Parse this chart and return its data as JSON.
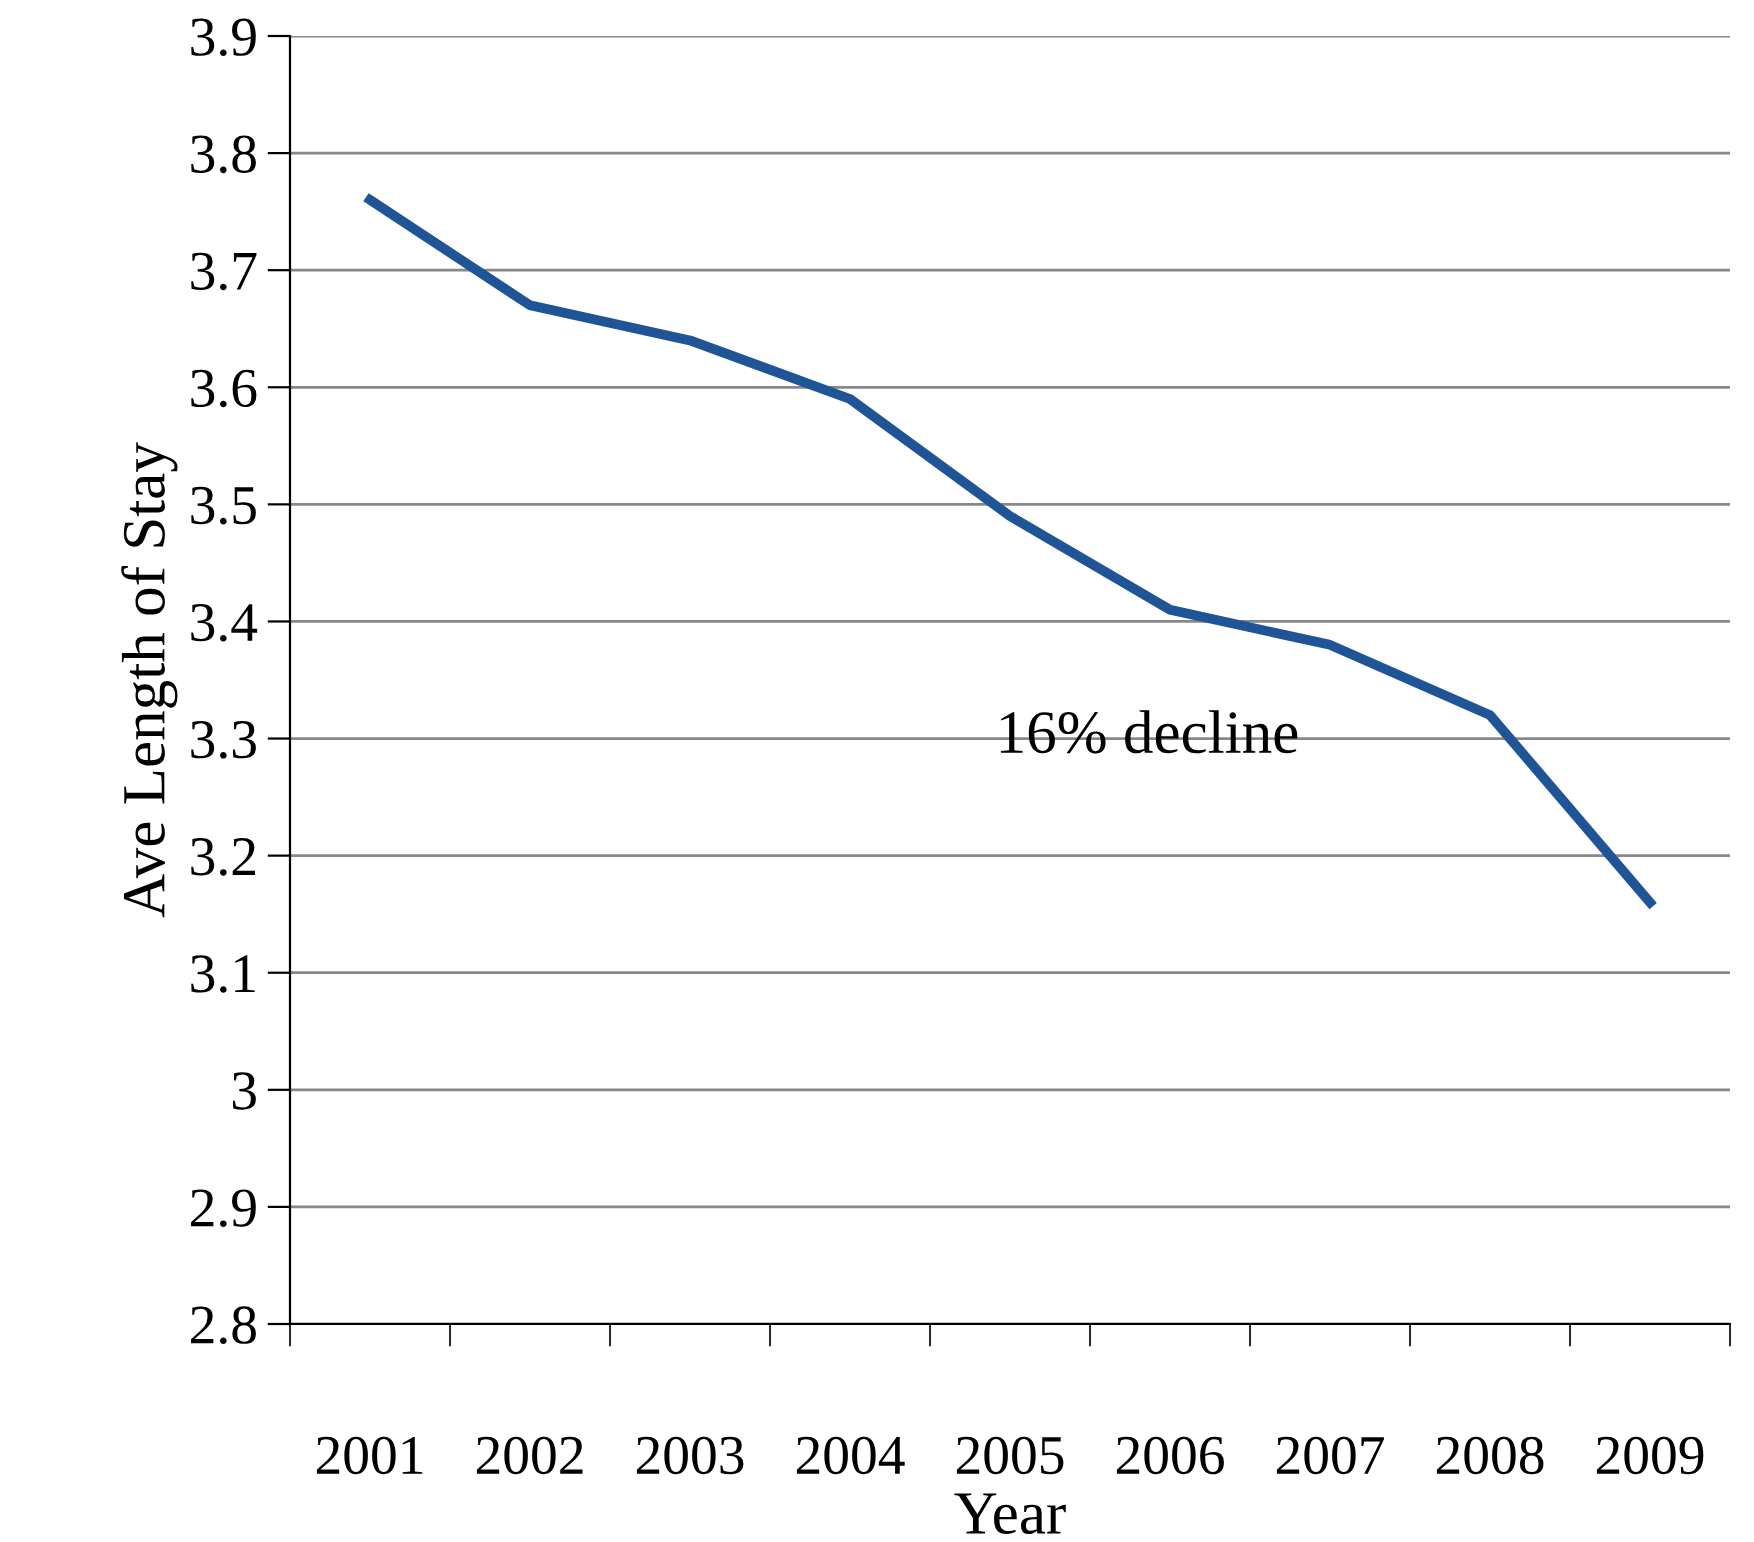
{
  "chart_data": {
    "type": "line",
    "xlabel": "Year",
    "ylabel": "Ave Length of Stay",
    "categories": [
      "2001",
      "2002",
      "2003",
      "2004",
      "2005",
      "2006",
      "2007",
      "2008",
      "2009"
    ],
    "series": [
      {
        "color": "#1f5597",
        "values": [
          3.76,
          3.67,
          3.64,
          3.59,
          3.49,
          3.41,
          3.38,
          3.32,
          3.16
        ]
      }
    ],
    "ylim": [
      2.8,
      3.9
    ],
    "yticks": [
      2.8,
      2.9,
      3,
      3.1,
      3.2,
      3.3,
      3.4,
      3.5,
      3.6,
      3.7,
      3.8,
      3.9
    ],
    "grid": "y",
    "legend": false,
    "marker": "none",
    "line_style": "solid",
    "annotations": [
      "16% decline"
    ]
  }
}
